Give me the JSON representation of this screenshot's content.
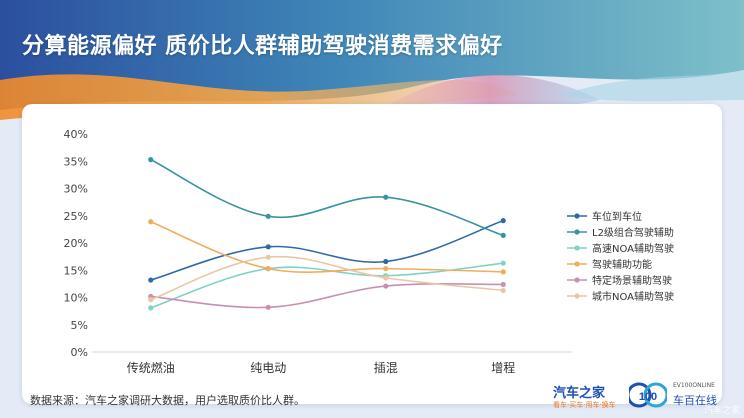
{
  "title": "分算能源偏好 质价比人群辅助驾驶消费需求偏好",
  "source_note": "数据来源：汽车之家调研大数据，用户选取质价比人群。",
  "brand": {
    "autohome": "汽车之家",
    "autohome_tagline": "看车·买车·用车·换车",
    "ev100_top": "EV100ONLINE",
    "ev100_name": "车百在线",
    "ev100_logo": "100"
  },
  "watermark": "汽车之家",
  "chart_data": {
    "type": "line",
    "title": "",
    "xlabel": "",
    "ylabel": "",
    "categories": [
      "传统燃油",
      "纯电动",
      "插混",
      "增程"
    ],
    "ylim": [
      0,
      0.4
    ],
    "yticks": [
      "0%",
      "5%",
      "10%",
      "15%",
      "20%",
      "25%",
      "30%",
      "35%",
      "40%"
    ],
    "grid": false,
    "legend_position": "right",
    "smooth": true,
    "series": [
      {
        "name": "车位到车位",
        "color": "#2e6aa8",
        "values": [
          0.132,
          0.193,
          0.166,
          0.241
        ]
      },
      {
        "name": "L2级组合驾驶辅助",
        "color": "#3a93a0",
        "values": [
          0.353,
          0.249,
          0.284,
          0.214
        ]
      },
      {
        "name": "高速NOA辅助驾驶",
        "color": "#7fd3c4",
        "values": [
          0.081,
          0.153,
          0.14,
          0.163
        ]
      },
      {
        "name": "驾驶辅助功能",
        "color": "#f0ad5e",
        "values": [
          0.239,
          0.153,
          0.153,
          0.147
        ]
      },
      {
        "name": "特定场景辅助驾驶",
        "color": "#c98fb1",
        "values": [
          0.102,
          0.082,
          0.121,
          0.124
        ]
      },
      {
        "name": "城市NOA辅助驾驶",
        "color": "#e9c7a3",
        "values": [
          0.096,
          0.174,
          0.136,
          0.113
        ]
      }
    ]
  }
}
